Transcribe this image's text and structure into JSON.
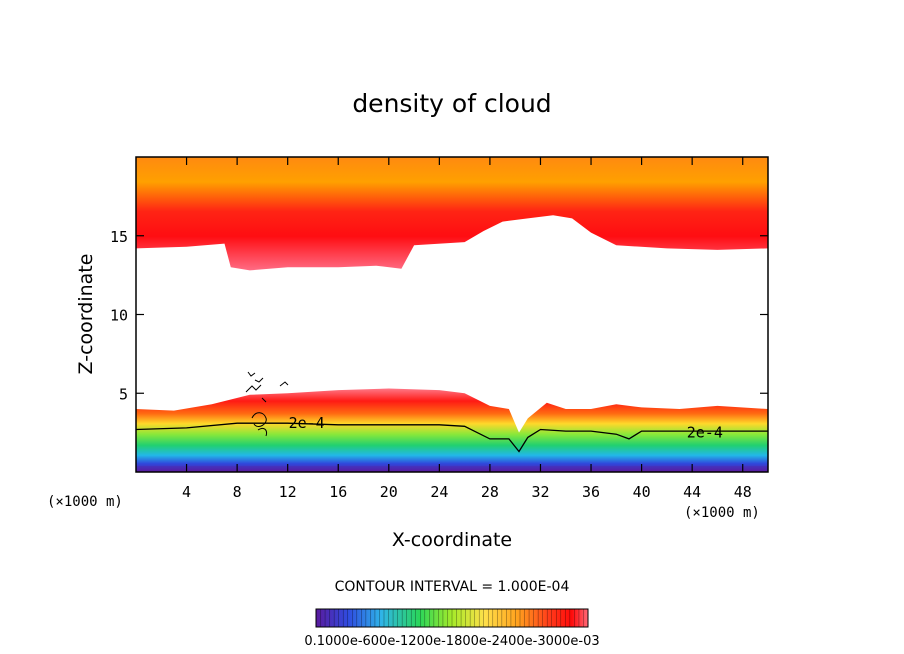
{
  "chart_data": {
    "type": "heatmap",
    "title": "density of cloud",
    "xlabel": "X-coordinate",
    "ylabel": "Z-coordinate",
    "x_unit_left": "(×1000 m)",
    "x_unit_right": "(×1000 m)",
    "xlim": [
      0,
      50
    ],
    "ylim": [
      0,
      20
    ],
    "x_ticks": [
      4,
      8,
      12,
      16,
      20,
      24,
      28,
      32,
      36,
      40,
      44,
      48
    ],
    "y_ticks": [
      5,
      10,
      15
    ],
    "contour_interval_text": "CONTOUR INTERVAL = 1.000E-04",
    "contour_labels": [
      {
        "text": "2e-4",
        "x": 13.5,
        "z": 3.1
      },
      {
        "text": "2e-4",
        "x": 45.0,
        "z": 2.5
      }
    ],
    "colorbar_labels_text": "0.1000e-600e-1200e-1800e-2400e-3000e-03",
    "colormap": [
      "#5a1a9e",
      "#2f4ce0",
      "#2fb4e8",
      "#2ad65a",
      "#a6ea2a",
      "#ffe04a",
      "#ffa21e",
      "#ff4c1a",
      "#ff0a0a",
      "#ff6a78"
    ],
    "upper_layer_top": [
      {
        "x": 0,
        "z": 20
      },
      {
        "x": 50,
        "z": 20
      }
    ],
    "upper_layer_bottom": [
      {
        "x": 0,
        "z": 14.2
      },
      {
        "x": 4,
        "z": 14.3
      },
      {
        "x": 7,
        "z": 14.5
      },
      {
        "x": 7.5,
        "z": 13.0
      },
      {
        "x": 9,
        "z": 12.8
      },
      {
        "x": 12,
        "z": 13.0
      },
      {
        "x": 16,
        "z": 13.0
      },
      {
        "x": 19,
        "z": 13.1
      },
      {
        "x": 21,
        "z": 12.9
      },
      {
        "x": 22,
        "z": 14.4
      },
      {
        "x": 26,
        "z": 14.6
      },
      {
        "x": 27.5,
        "z": 15.3
      },
      {
        "x": 29,
        "z": 15.9
      },
      {
        "x": 31,
        "z": 16.1
      },
      {
        "x": 33,
        "z": 16.3
      },
      {
        "x": 34.5,
        "z": 16.1
      },
      {
        "x": 36,
        "z": 15.2
      },
      {
        "x": 38,
        "z": 14.4
      },
      {
        "x": 42,
        "z": 14.2
      },
      {
        "x": 46,
        "z": 14.1
      },
      {
        "x": 50,
        "z": 14.2
      }
    ],
    "lower_layer_top": [
      {
        "x": 0,
        "z": 4.0
      },
      {
        "x": 3,
        "z": 3.9
      },
      {
        "x": 6,
        "z": 4.3
      },
      {
        "x": 9,
        "z": 4.9
      },
      {
        "x": 12,
        "z": 5.0
      },
      {
        "x": 16,
        "z": 5.2
      },
      {
        "x": 20,
        "z": 5.3
      },
      {
        "x": 24,
        "z": 5.2
      },
      {
        "x": 26,
        "z": 5.0
      },
      {
        "x": 28,
        "z": 4.2
      },
      {
        "x": 29.5,
        "z": 4.0
      },
      {
        "x": 30.3,
        "z": 2.5
      },
      {
        "x": 31,
        "z": 3.4
      },
      {
        "x": 32.5,
        "z": 4.4
      },
      {
        "x": 34,
        "z": 4.0
      },
      {
        "x": 36,
        "z": 4.0
      },
      {
        "x": 38,
        "z": 4.3
      },
      {
        "x": 40,
        "z": 4.1
      },
      {
        "x": 43,
        "z": 4.0
      },
      {
        "x": 46,
        "z": 4.2
      },
      {
        "x": 50,
        "z": 4.0
      }
    ],
    "contour_2e4": [
      {
        "x": 0,
        "z": 2.7
      },
      {
        "x": 4,
        "z": 2.8
      },
      {
        "x": 8,
        "z": 3.1
      },
      {
        "x": 12,
        "z": 3.1
      },
      {
        "x": 16,
        "z": 3.0
      },
      {
        "x": 20,
        "z": 3.0
      },
      {
        "x": 24,
        "z": 3.0
      },
      {
        "x": 26,
        "z": 2.9
      },
      {
        "x": 28,
        "z": 2.1
      },
      {
        "x": 29.5,
        "z": 2.1
      },
      {
        "x": 30.3,
        "z": 1.3
      },
      {
        "x": 31,
        "z": 2.2
      },
      {
        "x": 32,
        "z": 2.7
      },
      {
        "x": 34,
        "z": 2.6
      },
      {
        "x": 36,
        "z": 2.6
      },
      {
        "x": 38,
        "z": 2.4
      },
      {
        "x": 39,
        "z": 2.1
      },
      {
        "x": 40,
        "z": 2.6
      },
      {
        "x": 44,
        "z": 2.6
      },
      {
        "x": 48,
        "z": 2.6
      },
      {
        "x": 50,
        "z": 2.6
      }
    ]
  }
}
